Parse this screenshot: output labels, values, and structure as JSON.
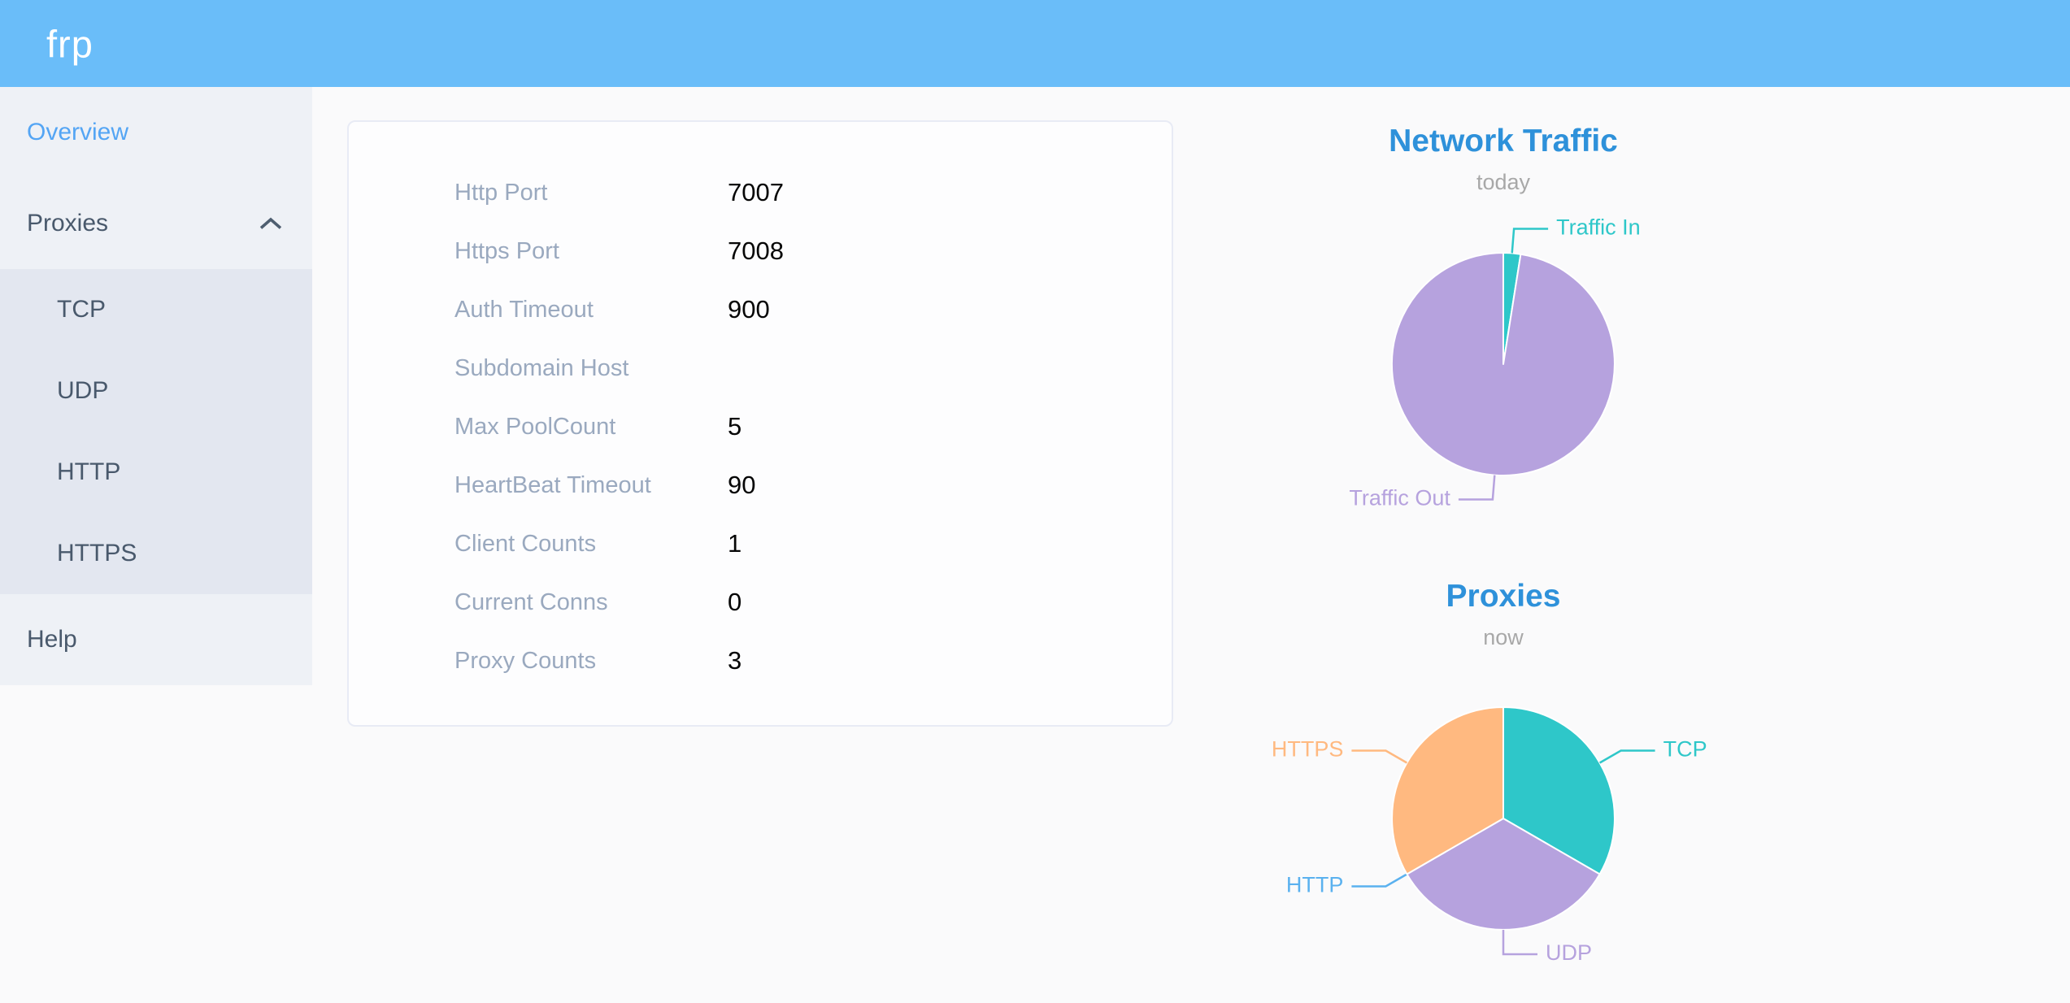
{
  "header": {
    "logo": "frp",
    "bg_color": "#6abdf9"
  },
  "sidebar": {
    "active_color": "#54a5f4",
    "items": [
      {
        "id": "overview",
        "label": "Overview",
        "type": "item",
        "active": true
      },
      {
        "id": "proxies",
        "label": "Proxies",
        "type": "group",
        "expanded": true,
        "children": [
          {
            "id": "tcp",
            "label": "TCP"
          },
          {
            "id": "udp",
            "label": "UDP"
          },
          {
            "id": "http",
            "label": "HTTP"
          },
          {
            "id": "https",
            "label": "HTTPS"
          }
        ]
      },
      {
        "id": "help",
        "label": "Help",
        "type": "item",
        "active": false
      }
    ]
  },
  "config": {
    "rows": [
      {
        "label": "Http Port",
        "value": "7007"
      },
      {
        "label": "Https Port",
        "value": "7008"
      },
      {
        "label": "Auth Timeout",
        "value": "900"
      },
      {
        "label": "Subdomain Host",
        "value": ""
      },
      {
        "label": "Max PoolCount",
        "value": "5"
      },
      {
        "label": "HeartBeat Timeout",
        "value": "90"
      },
      {
        "label": "Client Counts",
        "value": "1"
      },
      {
        "label": "Current Conns",
        "value": "0"
      },
      {
        "label": "Proxy Counts",
        "value": "3"
      }
    ]
  },
  "chart_data": [
    {
      "type": "pie",
      "title": "Network Traffic",
      "subtitle": "today",
      "title_color": "#2e91da",
      "start_angle": "top",
      "direction": "clockwise",
      "legend_position": "none",
      "unit": "percent (estimated from slice angles)",
      "slices": [
        {
          "label": "Traffic In",
          "value": 2.5,
          "color": "#2ec7c9",
          "label_side": "right"
        },
        {
          "label": "Traffic Out",
          "value": 97.5,
          "color": "#b6a2de",
          "label_side": "left"
        }
      ]
    },
    {
      "type": "pie",
      "title": "Proxies",
      "subtitle": "now",
      "title_color": "#2e91da",
      "start_angle": "top",
      "direction": "clockwise",
      "legend_position": "none",
      "unit": "proxy count",
      "slices": [
        {
          "label": "TCP",
          "value": 1,
          "color": "#2ec7c9",
          "label_side": "right"
        },
        {
          "label": "UDP",
          "value": 1,
          "color": "#b6a2de",
          "label_side": "right"
        },
        {
          "label": "HTTP",
          "value": 0,
          "color": "#5ab1ef",
          "label_side": "left"
        },
        {
          "label": "HTTPS",
          "value": 1,
          "color": "#ffb980",
          "label_side": "left"
        }
      ]
    }
  ]
}
